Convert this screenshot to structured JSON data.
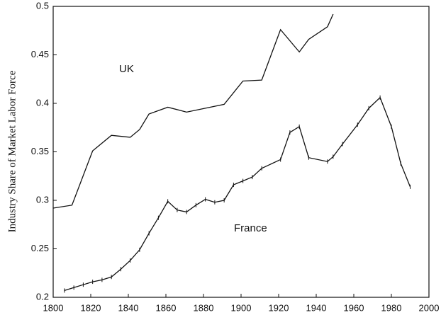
{
  "chart_data": {
    "type": "line",
    "ylabel": "Industry Share of Market Labor Force",
    "annotations": [
      "UK",
      "France"
    ],
    "xlim": [
      1800,
      2000
    ],
    "xticks": [
      1800,
      1820,
      1840,
      1860,
      1880,
      1900,
      1920,
      1940,
      1960,
      1980,
      2000
    ],
    "ylim": [
      0.2,
      0.5
    ],
    "yticks": [
      0.2,
      0.25,
      0.3,
      0.35,
      0.4,
      0.45,
      0.5
    ],
    "grid": false,
    "series": [
      {
        "name": "UK",
        "color": "#111111",
        "marker": "none",
        "x": [
          1800,
          1810,
          1821,
          1831,
          1841,
          1846,
          1851,
          1861,
          1871,
          1881,
          1891,
          1901,
          1911,
          1921,
          1931,
          1936,
          1946,
          1949
        ],
        "values": [
          0.292,
          0.295,
          0.351,
          0.367,
          0.365,
          0.373,
          0.389,
          0.396,
          0.391,
          0.395,
          0.399,
          0.423,
          0.424,
          0.476,
          0.453,
          0.466,
          0.479,
          0.492
        ]
      },
      {
        "name": "France",
        "color": "#111111",
        "marker": "tick",
        "x": [
          1806,
          1811,
          1816,
          1821,
          1826,
          1831,
          1836,
          1841,
          1846,
          1851,
          1856,
          1861,
          1866,
          1871,
          1876,
          1881,
          1886,
          1891,
          1896,
          1901,
          1906,
          1911,
          1921,
          1926,
          1931,
          1936,
          1946,
          1949,
          1954,
          1962,
          1968,
          1974,
          1980,
          1985,
          1990
        ],
        "values": [
          0.207,
          0.21,
          0.213,
          0.216,
          0.218,
          0.221,
          0.229,
          0.238,
          0.249,
          0.266,
          0.282,
          0.299,
          0.29,
          0.288,
          0.295,
          0.301,
          0.298,
          0.3,
          0.316,
          0.32,
          0.324,
          0.333,
          0.342,
          0.37,
          0.376,
          0.344,
          0.34,
          0.345,
          0.358,
          0.378,
          0.395,
          0.406,
          0.376,
          0.338,
          0.314
        ]
      }
    ]
  }
}
